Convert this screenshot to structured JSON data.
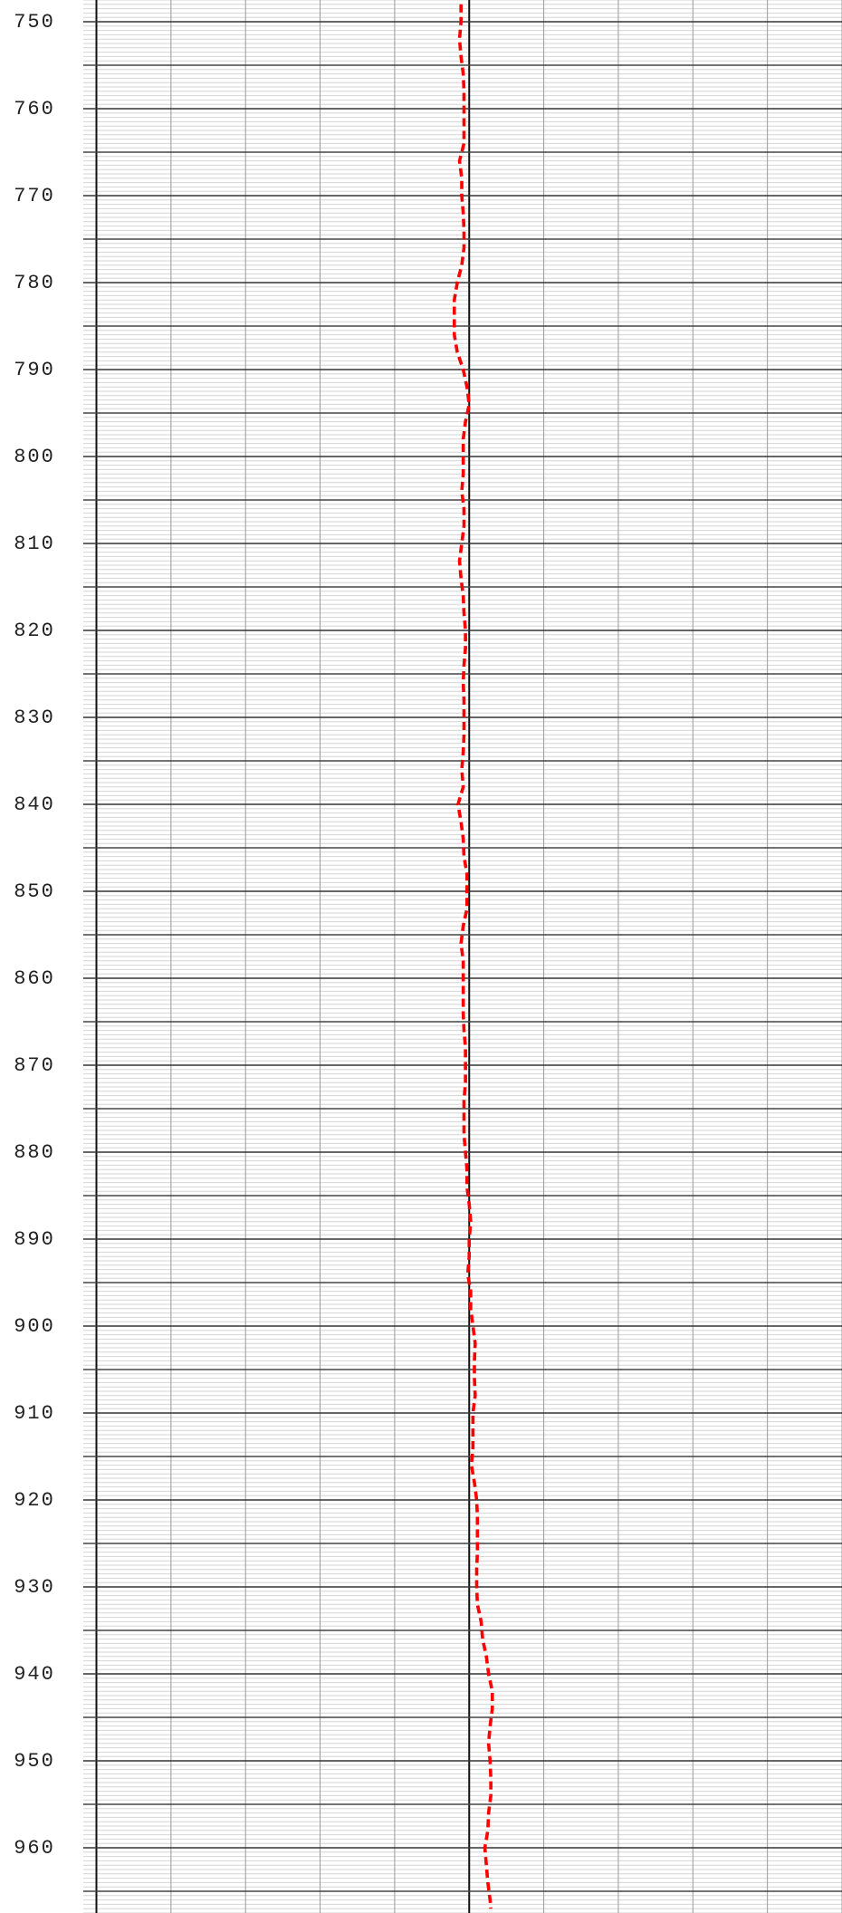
{
  "chart_data": {
    "type": "line",
    "orientation": "vertical-depth",
    "xlim": [
      0,
      10
    ],
    "xticks": [
      0,
      1,
      2,
      3,
      4,
      5,
      6,
      7,
      8,
      9,
      10
    ],
    "ylim": [
      747.5,
      967.5
    ],
    "y_inverted": true,
    "yticks": [
      750,
      760,
      770,
      780,
      790,
      800,
      810,
      820,
      830,
      840,
      850,
      860,
      870,
      880,
      890,
      900,
      910,
      920,
      930,
      940,
      950,
      960
    ],
    "ymid_ticks": [
      755,
      765,
      775,
      785,
      795,
      805,
      815,
      825,
      835,
      845,
      855,
      865,
      875,
      885,
      895,
      905,
      915,
      925,
      935,
      945,
      955,
      965
    ],
    "minor_grid_step": 0.5,
    "grid": true,
    "series": [
      {
        "color": "#ff0000",
        "y": [
          748,
          750,
          752,
          754,
          756,
          758,
          760,
          762,
          764,
          766,
          768,
          770,
          772,
          774,
          776,
          778,
          780,
          782,
          784,
          786,
          788,
          790,
          792,
          794,
          796,
          798,
          800,
          802,
          804,
          806,
          808,
          810,
          812,
          814,
          816,
          818,
          820,
          822,
          824,
          826,
          828,
          830,
          832,
          834,
          836,
          838,
          840,
          842,
          844,
          846,
          848,
          850,
          852,
          854,
          856,
          858,
          860,
          862,
          864,
          866,
          868,
          870,
          872,
          874,
          876,
          878,
          880,
          882,
          884,
          886,
          888,
          890,
          892,
          894,
          896,
          898,
          900,
          902,
          904,
          906,
          908,
          910,
          912,
          914,
          916,
          918,
          920,
          922,
          924,
          926,
          928,
          930,
          932,
          934,
          936,
          938,
          940,
          942,
          944,
          946,
          948,
          950,
          952,
          954,
          956,
          958,
          960,
          962,
          964,
          966,
          967
        ],
        "values": [
          4.89,
          4.89,
          4.87,
          4.89,
          4.92,
          4.93,
          4.93,
          4.93,
          4.93,
          4.87,
          4.9,
          4.9,
          4.92,
          4.93,
          4.93,
          4.9,
          4.84,
          4.8,
          4.8,
          4.8,
          4.84,
          4.92,
          4.97,
          5.0,
          4.95,
          4.92,
          4.92,
          4.92,
          4.9,
          4.93,
          4.93,
          4.9,
          4.87,
          4.89,
          4.92,
          4.93,
          4.95,
          4.95,
          4.93,
          4.92,
          4.93,
          4.93,
          4.93,
          4.92,
          4.9,
          4.92,
          4.85,
          4.89,
          4.92,
          4.93,
          4.97,
          4.97,
          4.97,
          4.92,
          4.89,
          4.92,
          4.92,
          4.92,
          4.92,
          4.93,
          4.95,
          4.95,
          4.95,
          4.93,
          4.93,
          4.93,
          4.95,
          4.97,
          4.97,
          5.0,
          5.02,
          5.0,
          5.0,
          4.98,
          5.02,
          5.02,
          5.05,
          5.08,
          5.07,
          5.07,
          5.08,
          5.05,
          5.05,
          5.05,
          5.03,
          5.07,
          5.1,
          5.11,
          5.11,
          5.11,
          5.1,
          5.1,
          5.11,
          5.16,
          5.18,
          5.23,
          5.26,
          5.31,
          5.31,
          5.28,
          5.26,
          5.28,
          5.29,
          5.29,
          5.26,
          5.25,
          5.21,
          5.23,
          5.25,
          5.28,
          5.29
        ]
      }
    ]
  }
}
